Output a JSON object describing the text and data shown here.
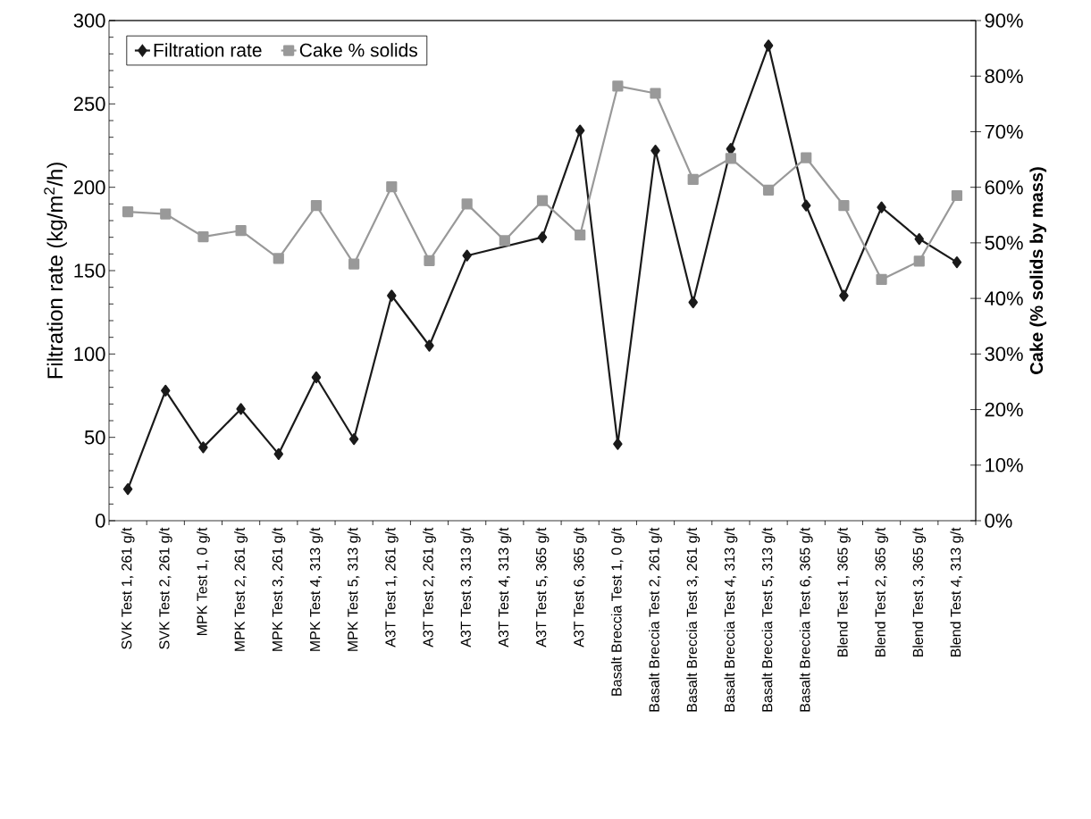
{
  "chart_data": {
    "type": "line",
    "categories": [
      "SVK Test 1, 261 g/t",
      "SVK Test 2, 261 g/t",
      "MPK Test 1, 0 g/t",
      "MPK Test 2, 261 g/t",
      "MPK Test 3, 261 g/t",
      "MPK Test 4, 313 g/t",
      "MPK Test 5, 313 g/t",
      "A3T Test 1, 261 g/t",
      "A3T Test 2, 261 g/t",
      "A3T Test 3, 313 g/t",
      "A3T Test 4, 313 g/t",
      "A3T Test 5, 365 g/t",
      "A3T Test 6, 365 g/t",
      "Basalt Breccia Test 1, 0 g/t",
      "Basalt Breccia Test 2, 261 g/t",
      "Basalt Breccia Test 3, 261 g/t",
      "Basalt Breccia Test 4, 313 g/t",
      "Basalt Breccia Test 5, 313 g/t",
      "Basalt Breccia Test 6, 365 g/t",
      "Blend Test 1, 365 g/t",
      "Blend Test 2, 365 g/t",
      "Blend Test 3, 365 g/t",
      "Blend Test 4, 313 g/t"
    ],
    "series": [
      {
        "name": "Filtration rate",
        "color": "#1a1a1a",
        "marker": "diamond",
        "values": [
          19,
          78,
          44,
          67,
          40,
          86,
          49,
          135,
          105,
          159,
          null,
          170,
          234,
          46,
          222,
          131,
          223,
          285,
          189,
          135,
          188,
          169,
          155
        ]
      },
      {
        "name": "Cake % solids",
        "color": "#999999",
        "marker": "square",
        "axis": "y2",
        "values": [
          55.6,
          55.2,
          51.1,
          52.2,
          47.2,
          56.7,
          46.2,
          60.1,
          46.8,
          57.0,
          50.4,
          57.6,
          51.4,
          78.2,
          76.9,
          61.4,
          65.2,
          59.5,
          65.3,
          56.7,
          43.4,
          46.7,
          58.5
        ]
      }
    ],
    "ylabel": "Filtration rate (kg/m$^{2}$/h)",
    "y2label": "Cake (% solids by mass)",
    "ylim": [
      0,
      300
    ],
    "yticks": [
      0,
      50,
      100,
      150,
      200,
      250,
      300
    ],
    "y2lim": [
      0,
      90
    ],
    "y2ticks": [
      {
        "value": 0,
        "label": "0%"
      },
      {
        "value": 10,
        "label": "10%"
      },
      {
        "value": 20,
        "label": "20%"
      },
      {
        "value": 30,
        "label": "30%"
      },
      {
        "value": 40,
        "label": "40%"
      },
      {
        "value": 50,
        "label": "50%"
      },
      {
        "value": 60,
        "label": "60%"
      },
      {
        "value": 70,
        "label": "70%"
      },
      {
        "value": 80,
        "label": "80%"
      },
      {
        "value": 90,
        "label": "90%"
      }
    ],
    "legend": "top left"
  }
}
